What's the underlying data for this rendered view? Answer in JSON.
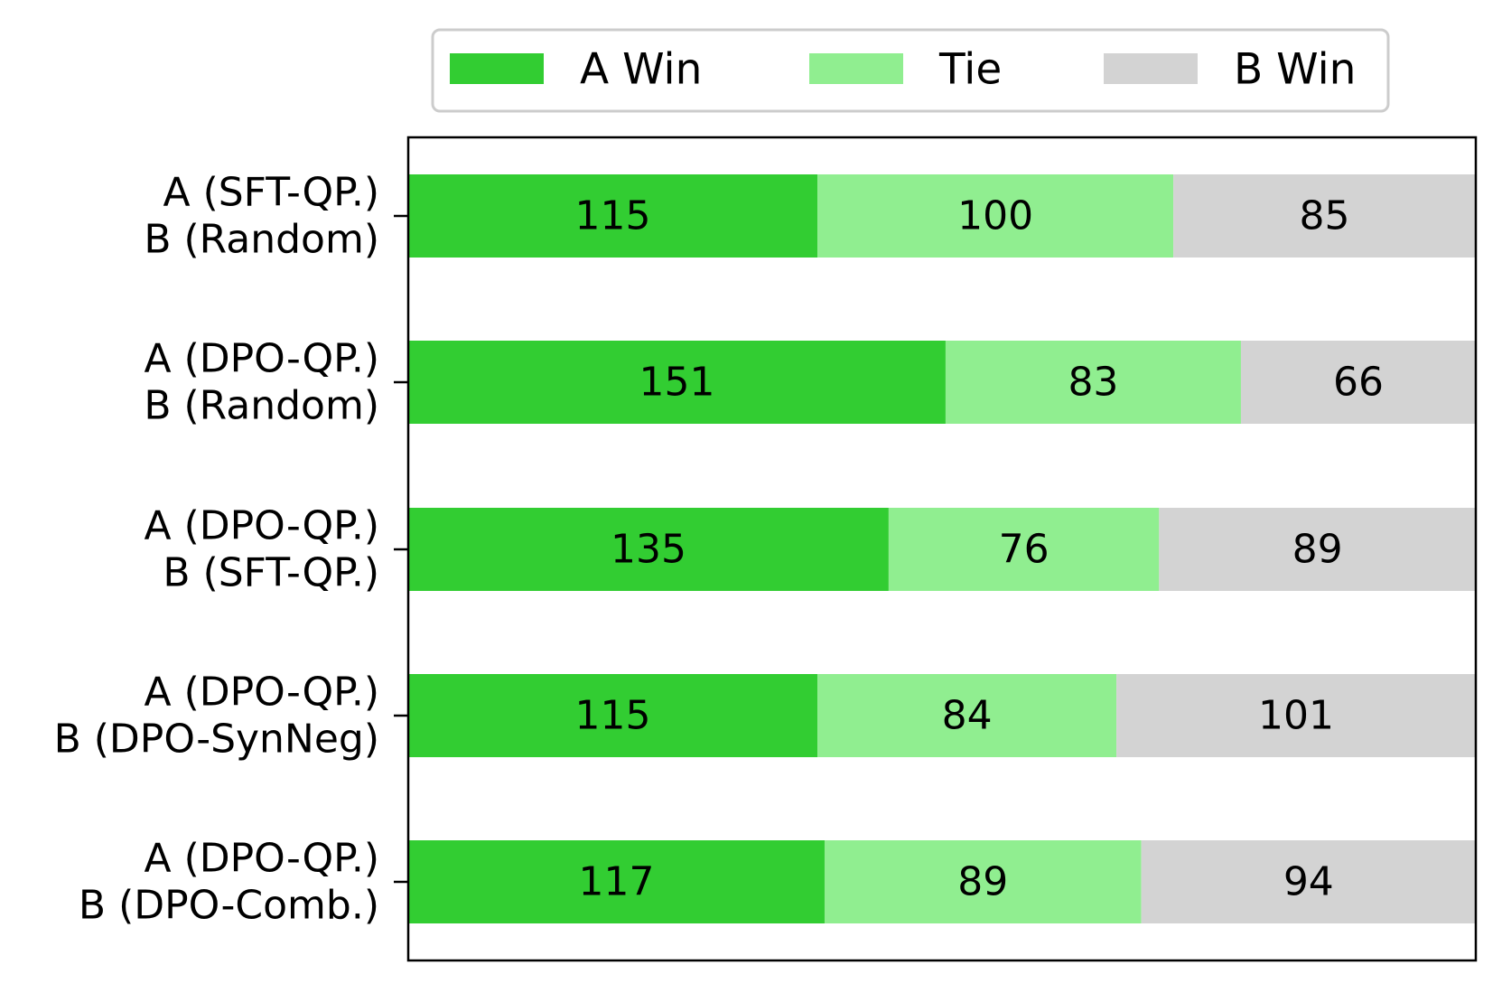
{
  "chart_data": {
    "type": "bar",
    "orientation": "horizontal",
    "stacked": true,
    "categories": [
      [
        "A (SFT-QP.)",
        "B (Random)"
      ],
      [
        "A (DPO-QP.)",
        "B (Random)"
      ],
      [
        "A (DPO-QP.)",
        "B (SFT-QP.)"
      ],
      [
        "A (DPO-QP.)",
        "B (DPO-SynNeg)"
      ],
      [
        "A (DPO-QP.)",
        "B (DPO-Comb.)"
      ]
    ],
    "series": [
      {
        "name": "A Win",
        "color": "#32cd32",
        "values": [
          115,
          151,
          135,
          115,
          117
        ]
      },
      {
        "name": "Tie",
        "color": "#90ee90",
        "values": [
          100,
          83,
          76,
          84,
          89
        ]
      },
      {
        "name": "B Win",
        "color": "#d3d3d3",
        "values": [
          85,
          66,
          89,
          101,
          94
        ]
      }
    ],
    "xlim": [
      0,
      300
    ],
    "grid": false,
    "legend_position": "top",
    "data_labels": true,
    "xlabel": "",
    "ylabel": "",
    "title": ""
  }
}
